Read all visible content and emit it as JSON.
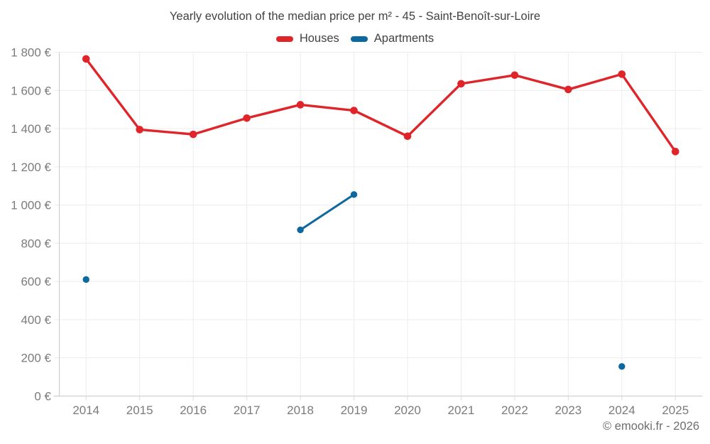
{
  "page": {
    "title": "Yearly evolution of the median price per m² - 45 - Saint-Benoît-sur-Loire",
    "attribution": "© emooki.fr - 2026"
  },
  "colors": {
    "houses": "#e0252a",
    "apartments": "#0d689e",
    "grid": "#ececec",
    "axis": "#c8c8c8",
    "tick": "#d9d9d9",
    "axis_label": "#7b7b7b",
    "title_text": "#424242",
    "attribution_text": "#6e6e6e",
    "background": "#ffffff"
  },
  "chart_data": {
    "type": "line",
    "title": "Yearly evolution of the median price per m² - 45 - Saint-Benoît-sur-Loire",
    "xlabel": "",
    "ylabel": "",
    "y_unit": "€",
    "ylim": [
      0,
      1800
    ],
    "ytick_step": 200,
    "ytick_labels": [
      "0 €",
      "200 €",
      "400 €",
      "600 €",
      "800 €",
      "1 000 €",
      "1 200 €",
      "1 400 €",
      "1 600 €",
      "1 800 €"
    ],
    "grid": true,
    "legend_position": "top",
    "categories": [
      "2014",
      "2015",
      "2016",
      "2017",
      "2018",
      "2019",
      "2020",
      "2021",
      "2022",
      "2023",
      "2024",
      "2025"
    ],
    "series": [
      {
        "name": "Houses",
        "color": "#e0252a",
        "values": [
          1765,
          1395,
          1370,
          1455,
          1525,
          1495,
          1360,
          1635,
          1680,
          1605,
          1685,
          1280
        ]
      },
      {
        "name": "Apartments",
        "color": "#0d689e",
        "values": [
          610,
          null,
          null,
          null,
          870,
          1055,
          null,
          null,
          null,
          null,
          155,
          null
        ]
      }
    ]
  }
}
